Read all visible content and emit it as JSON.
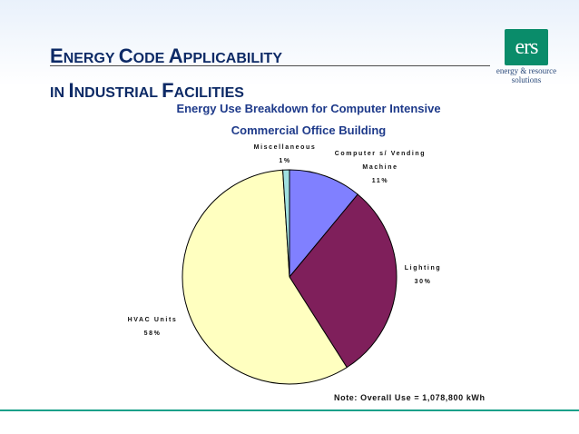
{
  "slide": {
    "title_line1": [
      "E",
      "NERGY ",
      "C",
      "ODE ",
      "A",
      "PPLICABILITY"
    ],
    "title_line2": [
      "IN ",
      "I",
      "NDUSTRIAL ",
      "F",
      "ACILITIES"
    ]
  },
  "logo": {
    "mark": "ers",
    "tagline_line1": "energy & resource",
    "tagline_line2": "solutions",
    "color": "#0a8c6a"
  },
  "chart_data": {
    "type": "pie",
    "title_line1": "Energy Use Breakdown for Computer Intensive",
    "title_line2": "Commercial Office Building",
    "slices": [
      {
        "label_lines": [
          "Computer s/ Vending",
          "Machine"
        ],
        "pct_text": "11%",
        "value": 11,
        "color": "#8080ff"
      },
      {
        "label_lines": [
          "Lighting"
        ],
        "pct_text": "30%",
        "value": 30,
        "color": "#7f1f5b"
      },
      {
        "label_lines": [
          "HVAC Units"
        ],
        "pct_text": "58%",
        "value": 58,
        "color": "#ffffc0"
      },
      {
        "label_lines": [
          "Miscellaneous"
        ],
        "pct_text": "1%",
        "value": 1,
        "color": "#a0e0e0"
      }
    ],
    "note": "Note: Overall Use = 1,078,800 kWh",
    "legend": "none"
  }
}
